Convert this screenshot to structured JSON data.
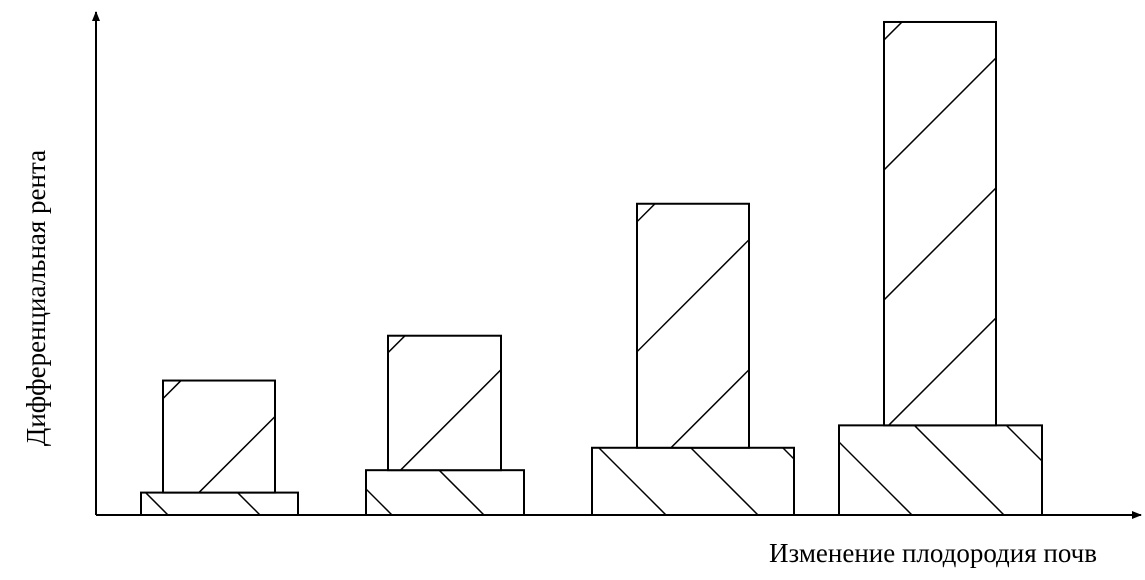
{
  "chart_data": {
    "type": "bar",
    "xlabel": "Изменение плодородия почв",
    "ylabel": "Дифференциальная рента",
    "categories": [
      "",
      "",
      "",
      ""
    ],
    "series": [
      {
        "values": [
          0.045,
          0.09,
          0.135,
          0.18
        ]
      },
      {
        "values": [
          0.225,
          0.27,
          0.49,
          0.81
        ]
      }
    ],
    "ylim": [
      0,
      1
    ],
    "grid": false,
    "legend": "none",
    "colors": {
      "stroke": "#000000",
      "fill": "#ffffff",
      "hatch": "#000000"
    }
  }
}
